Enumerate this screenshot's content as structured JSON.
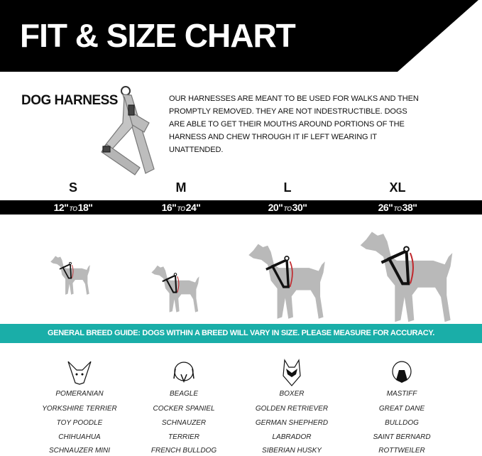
{
  "header": {
    "title": "FIT & SIZE CHART"
  },
  "product": {
    "name": "DOG HARNESS",
    "description_lines": [
      "OUR HARNESSES ARE MEANT TO BE USED FOR WALKS AND THEN",
      "PROMPTLY REMOVED. THEY ARE NOT INDESTRUCTIBLE. DOGS",
      "ARE ABLE TO GET THEIR MOUTHS AROUND PORTIONS OF THE",
      "HARNESS AND CHEW THROUGH IT IF LEFT WEARING IT",
      "UNATTENDED."
    ]
  },
  "sizes": [
    {
      "label": "S",
      "from": "12\"",
      "to_word": "TO",
      "to": "18\""
    },
    {
      "label": "M",
      "from": "16\"",
      "to_word": "TO",
      "to": "24\""
    },
    {
      "label": "L",
      "from": "20\"",
      "to_word": "TO",
      "to": "30\""
    },
    {
      "label": "XL",
      "from": "26\"",
      "to_word": "TO",
      "to": "38\""
    }
  ],
  "guide": {
    "text": "GENERAL BREED GUIDE: DOGS WITHIN A BREED WILL VARY IN SIZE. PLEASE MEASURE FOR ACCURACY."
  },
  "breeds": [
    {
      "icon": "chihuahua-head-icon",
      "items": [
        "POMERANIAN",
        "YORKSHIRE TERRIER",
        "TOY POODLE",
        "CHIHUAHUA",
        "SCHNAUZER MINI"
      ]
    },
    {
      "icon": "beagle-head-icon",
      "items": [
        "BEAGLE",
        "COCKER SPANIEL",
        "SCHNAUZER",
        "TERRIER",
        "FRENCH BULLDOG"
      ]
    },
    {
      "icon": "husky-head-icon",
      "items": [
        "BOXER",
        "GOLDEN RETRIEVER",
        "GERMAN SHEPHERD",
        "LABRADOR",
        "SIBERIAN HUSKY"
      ]
    },
    {
      "icon": "mastiff-head-icon",
      "items": [
        "MASTIFF",
        "GREAT DANE",
        "BULLDOG",
        "SAINT BERNARD",
        "ROTTWEILER"
      ]
    }
  ],
  "colors": {
    "header": "#000000",
    "accent": "#1aaea8",
    "dog": "#b9b9b9",
    "measure": "#c0282d"
  }
}
